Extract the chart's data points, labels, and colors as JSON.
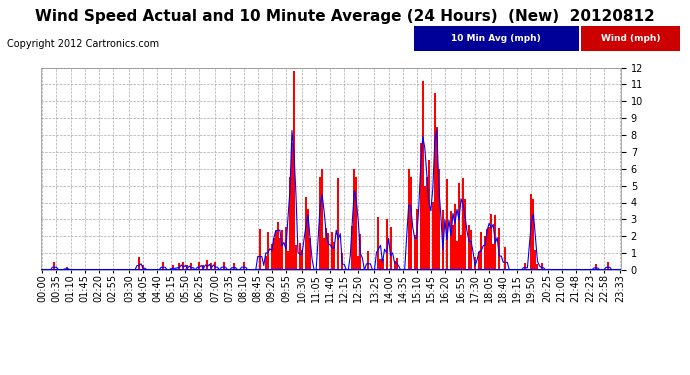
{
  "title": "Wind Speed Actual and 10 Minute Average (24 Hours)  (New)  20120812",
  "copyright": "Copyright 2012 Cartronics.com",
  "legend_10min_label": "10 Min Avg (mph)",
  "legend_wind_label": "Wind (mph)",
  "legend_10min_bg": "#000099",
  "legend_wind_bg": "#cc0000",
  "ylim": [
    0.0,
    12.0
  ],
  "yticks": [
    0.0,
    1.0,
    2.0,
    3.0,
    4.0,
    5.0,
    6.0,
    7.0,
    8.0,
    9.0,
    10.0,
    11.0,
    12.0
  ],
  "background_color": "#ffffff",
  "grid_color": "#aaaaaa",
  "bar_color": "#ff0000",
  "line_color": "#0000ff",
  "title_fontsize": 11,
  "copyright_fontsize": 7,
  "tick_fontsize": 7,
  "x_tick_labels": [
    "00:00",
    "00:35",
    "01:10",
    "01:45",
    "02:20",
    "02:55",
    "03:30",
    "04:05",
    "04:40",
    "05:15",
    "05:50",
    "06:25",
    "07:00",
    "07:35",
    "08:10",
    "08:45",
    "09:20",
    "09:55",
    "10:30",
    "11:05",
    "11:40",
    "12:15",
    "12:50",
    "13:25",
    "14:00",
    "14:35",
    "15:10",
    "15:45",
    "16:20",
    "16:55",
    "17:30",
    "18:05",
    "18:40",
    "19:15",
    "19:50",
    "20:25",
    "21:00",
    "21:48",
    "22:23",
    "22:58",
    "23:33"
  ],
  "n_bars": 288,
  "seed": 42
}
